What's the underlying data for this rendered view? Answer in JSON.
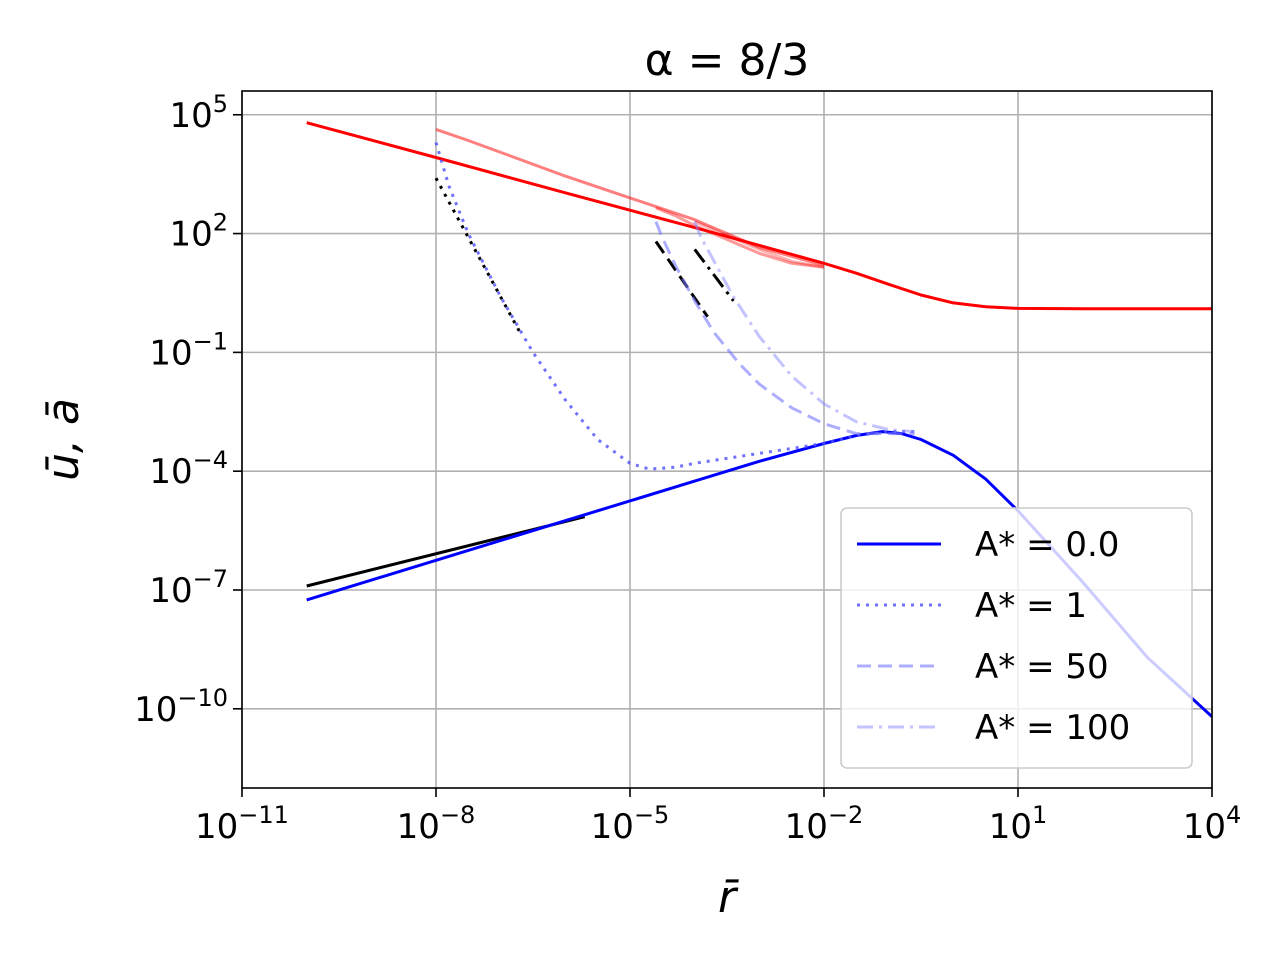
{
  "chart_data": {
    "type": "line",
    "title": "α = 8/3",
    "xlabel": "r̄",
    "ylabel": "ū, ā",
    "xscale": "log",
    "yscale": "log",
    "xlim_log10": [
      -11,
      4
    ],
    "ylim_log10": [
      -12,
      5.6
    ],
    "grid": true,
    "legend_position": "lower right",
    "x_ticks": [
      {
        "exp": -11,
        "base": "10",
        "sup": "−11"
      },
      {
        "exp": -8,
        "base": "10",
        "sup": "−8"
      },
      {
        "exp": -5,
        "base": "10",
        "sup": "−5"
      },
      {
        "exp": -2,
        "base": "10",
        "sup": "−2"
      },
      {
        "exp": 1,
        "base": "10",
        "sup": "1"
      },
      {
        "exp": 4,
        "base": "10",
        "sup": "4"
      }
    ],
    "y_ticks": [
      {
        "exp": 5,
        "base": "10",
        "sup": "5"
      },
      {
        "exp": 2,
        "base": "10",
        "sup": "2"
      },
      {
        "exp": -1,
        "base": "10",
        "sup": "−1"
      },
      {
        "exp": -4,
        "base": "10",
        "sup": "−4"
      },
      {
        "exp": -7,
        "base": "10",
        "sup": "−7"
      },
      {
        "exp": -10,
        "base": "10",
        "sup": "−10"
      }
    ],
    "series": [
      {
        "name": "A* = 0.0",
        "role": "u",
        "color": "#0000ff",
        "dash": "solid",
        "opacity": 1,
        "points_log10": [
          [
            -10,
            -7.25
          ],
          [
            -8,
            -6.25
          ],
          [
            -6,
            -5.25
          ],
          [
            -4,
            -4.25
          ],
          [
            -3,
            -3.75
          ],
          [
            -2,
            -3.3
          ],
          [
            -1.5,
            -3.1
          ],
          [
            -1.1,
            -3.0
          ],
          [
            -0.8,
            -3.05
          ],
          [
            -0.5,
            -3.2
          ],
          [
            0,
            -3.6
          ],
          [
            0.5,
            -4.2
          ],
          [
            1,
            -5.0
          ],
          [
            2,
            -6.8
          ],
          [
            3,
            -8.7
          ],
          [
            4,
            -10.2
          ]
        ]
      },
      {
        "name": "A* = 1",
        "role": "u",
        "color": "#4d4dff",
        "dash": "dotted",
        "opacity": 0.8,
        "points_log10": [
          [
            -8,
            4.3
          ],
          [
            -7.8,
            3.2
          ],
          [
            -7.5,
            2.0
          ],
          [
            -7,
            0.4
          ],
          [
            -6.5,
            -1.0
          ],
          [
            -6,
            -2.2
          ],
          [
            -5.5,
            -3.2
          ],
          [
            -5,
            -3.8
          ],
          [
            -4.7,
            -3.95
          ],
          [
            -4.3,
            -3.9
          ],
          [
            -4,
            -3.8
          ],
          [
            -3,
            -3.55
          ],
          [
            -2,
            -3.3
          ],
          [
            -1.5,
            -3.1
          ],
          [
            -1,
            -3.0
          ],
          [
            -0.6,
            -3.0
          ]
        ]
      },
      {
        "name": "A* = 50",
        "role": "u",
        "color": "#7777ff",
        "dash": "dashed",
        "opacity": 0.6,
        "points_log10": [
          [
            -4.6,
            2.3
          ],
          [
            -4.5,
            1.9
          ],
          [
            -4.3,
            1.2
          ],
          [
            -4,
            0.3
          ],
          [
            -3.7,
            -0.5
          ],
          [
            -3.3,
            -1.3
          ],
          [
            -3,
            -1.8
          ],
          [
            -2.5,
            -2.4
          ],
          [
            -2,
            -2.8
          ],
          [
            -1.5,
            -3.05
          ],
          [
            -1,
            -3.05
          ],
          [
            -0.6,
            -3.05
          ]
        ]
      },
      {
        "name": "A* = 100",
        "role": "u",
        "color": "#8888ff",
        "dash": "dashdot",
        "opacity": 0.5,
        "points_log10": [
          [
            -4,
            2.3
          ],
          [
            -3.9,
            1.9
          ],
          [
            -3.7,
            1.3
          ],
          [
            -3.4,
            0.4
          ],
          [
            -3,
            -0.6
          ],
          [
            -2.5,
            -1.6
          ],
          [
            -2,
            -2.3
          ],
          [
            -1.5,
            -2.75
          ],
          [
            -1,
            -2.95
          ],
          [
            -0.6,
            -3.0
          ]
        ]
      },
      {
        "name": "",
        "role": "a",
        "color": "#ff0000",
        "dash": "solid",
        "opacity": 1,
        "points_log10": [
          [
            -10,
            4.8
          ],
          [
            -8,
            3.92
          ],
          [
            -6,
            3.03
          ],
          [
            -4,
            2.15
          ],
          [
            -2,
            1.25
          ],
          [
            -1.5,
            1.0
          ],
          [
            -1,
            0.72
          ],
          [
            -0.5,
            0.45
          ],
          [
            0,
            0.25
          ],
          [
            0.5,
            0.15
          ],
          [
            1,
            0.11
          ],
          [
            2,
            0.1
          ],
          [
            4,
            0.1
          ]
        ]
      },
      {
        "name": "",
        "role": "a",
        "color": "#ff0000",
        "dash": "solid",
        "opacity": 0.5,
        "points_log10": [
          [
            -8,
            4.63
          ],
          [
            -7.5,
            4.35
          ],
          [
            -7,
            4.05
          ],
          [
            -6,
            3.45
          ],
          [
            -5,
            2.9
          ],
          [
            -4,
            2.35
          ],
          [
            -3,
            1.65
          ],
          [
            -2,
            1.2
          ]
        ]
      },
      {
        "name": "",
        "role": "a",
        "color": "#ff0000",
        "dash": "solid",
        "opacity": 0.4,
        "points_log10": [
          [
            -4.6,
            2.65
          ],
          [
            -4.3,
            2.45
          ],
          [
            -4,
            2.2
          ],
          [
            -3.5,
            1.85
          ],
          [
            -3,
            1.5
          ],
          [
            -2.5,
            1.25
          ],
          [
            -2,
            1.15
          ]
        ]
      },
      {
        "name": "",
        "role": "a",
        "color": "#ff0000",
        "dash": "solid",
        "opacity": 0.3,
        "points_log10": [
          [
            -4,
            2.3
          ],
          [
            -3.5,
            1.95
          ],
          [
            -3,
            1.6
          ],
          [
            -2.5,
            1.3
          ],
          [
            -2,
            1.15
          ]
        ]
      }
    ],
    "reference_lines": [
      {
        "color": "#000000",
        "dash": "solid",
        "points_log10": [
          [
            -10,
            -6.9
          ],
          [
            -5.7,
            -5.15
          ]
        ]
      },
      {
        "color": "#000000",
        "dash": "dotted",
        "points_log10": [
          [
            -8,
            3.4
          ],
          [
            -6.7,
            -0.5
          ]
        ]
      },
      {
        "color": "#000000",
        "dash": "dashed",
        "points_log10": [
          [
            -4.6,
            1.8
          ],
          [
            -3.8,
            -0.1
          ]
        ]
      },
      {
        "color": "#000000",
        "dash": "dashdot",
        "points_log10": [
          [
            -4,
            1.6
          ],
          [
            -3.4,
            0.3
          ]
        ]
      }
    ]
  }
}
